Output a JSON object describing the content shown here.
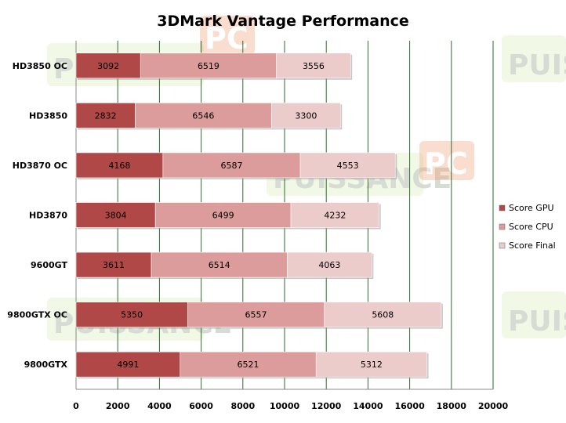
{
  "chart_data": {
    "type": "bar",
    "orientation": "horizontal",
    "stacked": true,
    "title": "3DMark Vantage Performance",
    "categories": [
      "HD3850 OC",
      "HD3850",
      "HD3870 OC",
      "HD3870",
      "9600GT",
      "9800GTX  OC",
      "9800GTX"
    ],
    "series": [
      {
        "name": "Score GPU",
        "values": [
          3092,
          2832,
          4168,
          3804,
          3611,
          5350,
          4991
        ],
        "color": "#b04848"
      },
      {
        "name": "Score CPU",
        "values": [
          6519,
          6546,
          6587,
          6499,
          6514,
          6557,
          6521
        ],
        "color": "#dc9c9c"
      },
      {
        "name": "Score Final",
        "values": [
          3556,
          3300,
          4553,
          4232,
          4063,
          5608,
          5312
        ],
        "color": "#eccbcb"
      }
    ],
    "xlim": [
      0,
      20000
    ],
    "xticks": [
      0,
      2000,
      4000,
      6000,
      8000,
      10000,
      12000,
      14000,
      16000,
      18000,
      20000
    ],
    "grid": "vertical",
    "gridline_color": "#2e6b2e",
    "legend_position": "right"
  },
  "watermark": {
    "text_main": "PUISSANCE",
    "text_pc": "PC",
    "text_partial": "PUIS"
  }
}
